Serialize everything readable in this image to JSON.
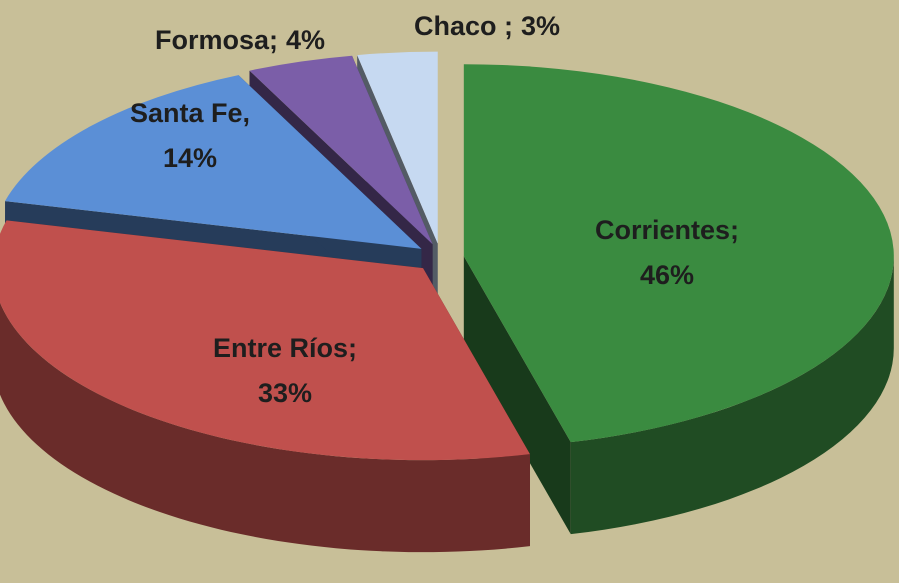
{
  "chart_data": {
    "type": "pie",
    "categories": [
      "Corrientes;",
      "Entre Ríos;",
      "Santa Fe,",
      "Formosa;",
      "Chaco ;"
    ],
    "values": [
      46,
      33,
      14,
      4,
      3
    ],
    "value_labels": [
      "46%",
      "33%",
      "14%",
      "4%",
      "3%"
    ],
    "colors": [
      "#3a8b40",
      "#c0504d",
      "#5b8fd6",
      "#7b5ea8",
      "#c6d9f1"
    ]
  }
}
